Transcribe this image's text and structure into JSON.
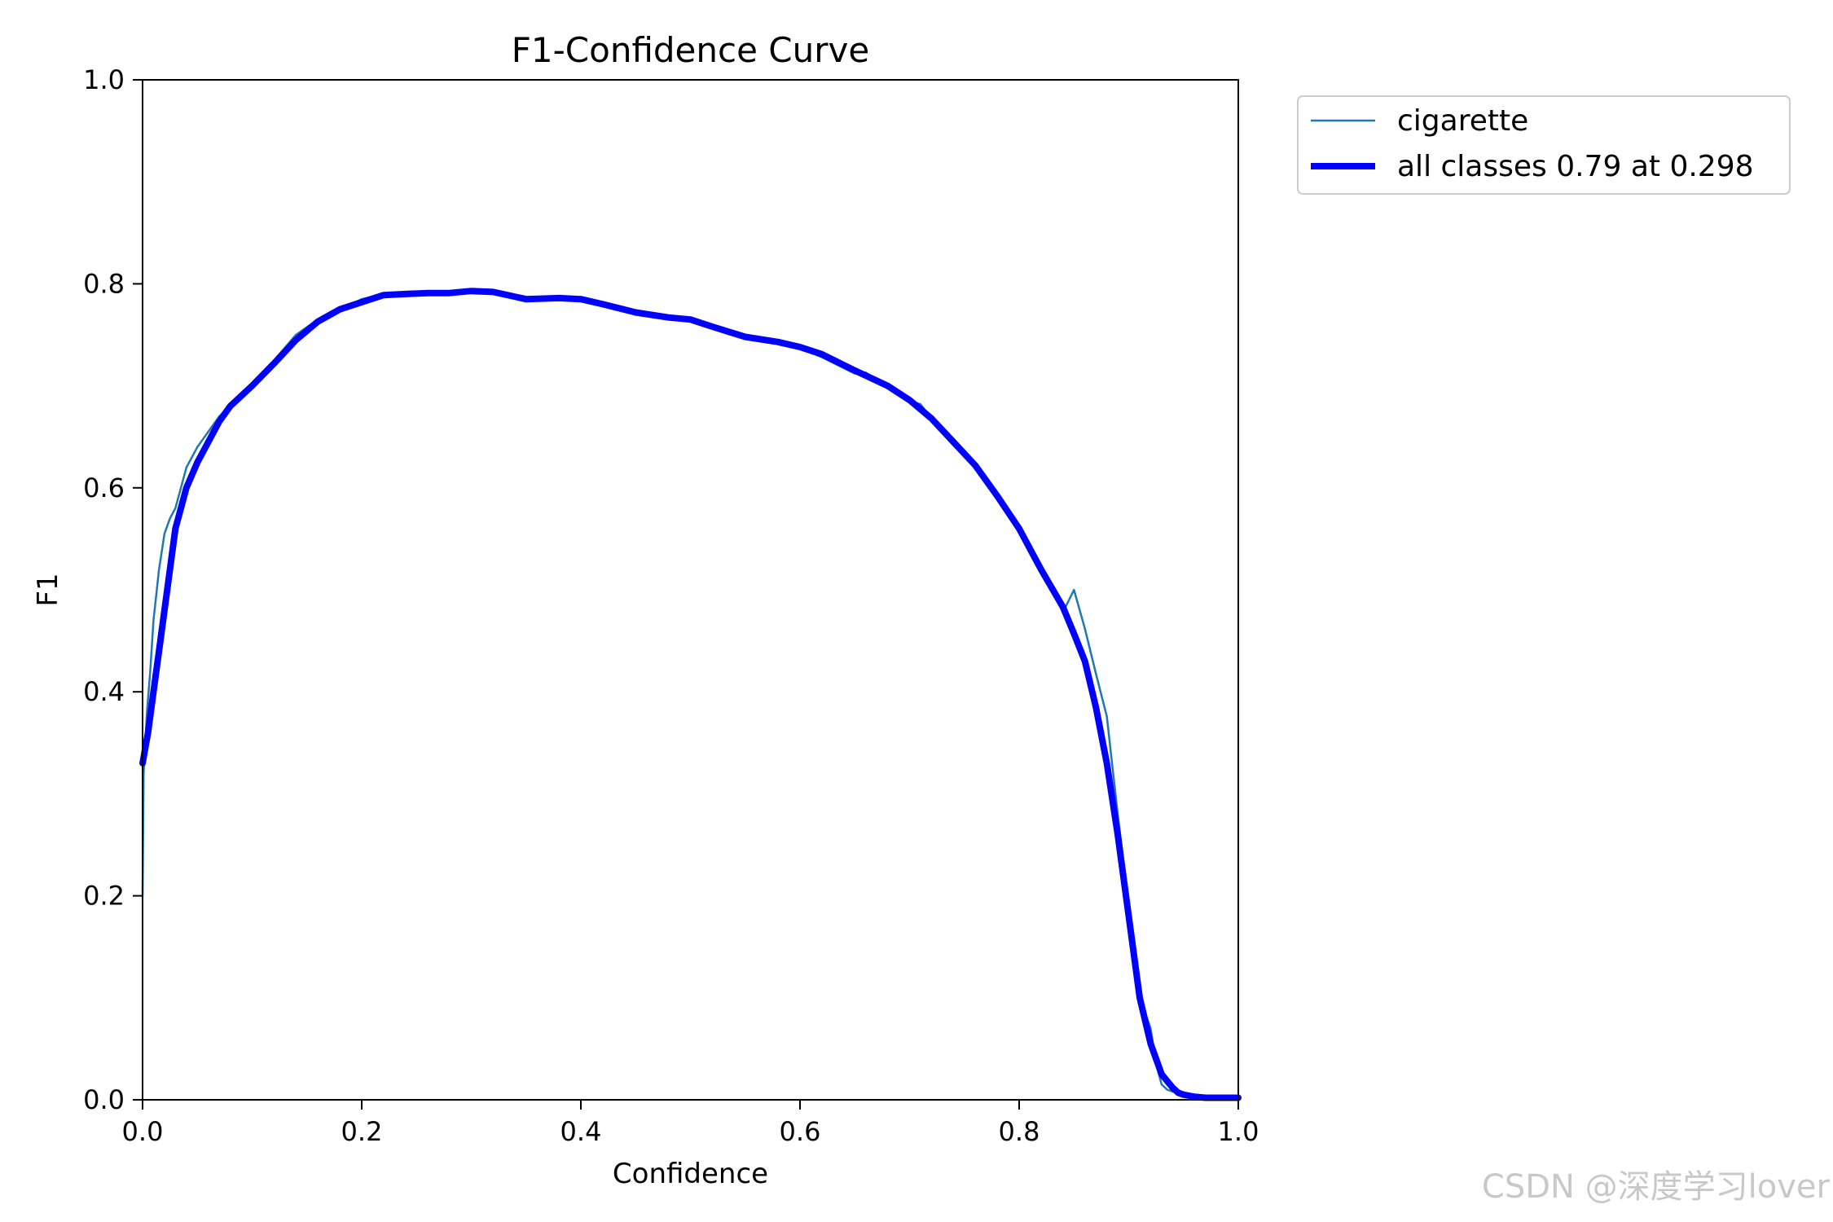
{
  "chart_data": {
    "type": "line",
    "title": "F1-Confidence Curve",
    "xlabel": "Confidence",
    "ylabel": "F1",
    "xlim": [
      0.0,
      1.0
    ],
    "ylim": [
      0.0,
      1.0
    ],
    "xticks": [
      "0.0",
      "0.2",
      "0.4",
      "0.6",
      "0.8",
      "1.0"
    ],
    "yticks": [
      "0.0",
      "0.2",
      "0.4",
      "0.6",
      "0.8",
      "1.0"
    ],
    "grid": false,
    "legend_position": "outside-top-right",
    "series": [
      {
        "name": "cigarette",
        "color": "#1f77b4",
        "style": "thin",
        "x": [
          0.0,
          0.001,
          0.004,
          0.007,
          0.01,
          0.015,
          0.02,
          0.025,
          0.03,
          0.035,
          0.04,
          0.05,
          0.06,
          0.07,
          0.08,
          0.1,
          0.12,
          0.14,
          0.16,
          0.18,
          0.2,
          0.22,
          0.24,
          0.26,
          0.28,
          0.3,
          0.32,
          0.35,
          0.38,
          0.4,
          0.42,
          0.45,
          0.47,
          0.5,
          0.52,
          0.55,
          0.58,
          0.6,
          0.62,
          0.65,
          0.66,
          0.68,
          0.7,
          0.71,
          0.72,
          0.74,
          0.76,
          0.78,
          0.8,
          0.82,
          0.84,
          0.85,
          0.86,
          0.87,
          0.88,
          0.89,
          0.9,
          0.91,
          0.92,
          0.925,
          0.93,
          0.935,
          0.94,
          0.95,
          0.955,
          0.96,
          0.97,
          1.0
        ],
        "y": [
          0.2,
          0.32,
          0.38,
          0.42,
          0.47,
          0.52,
          0.555,
          0.57,
          0.58,
          0.6,
          0.62,
          0.64,
          0.655,
          0.67,
          0.68,
          0.7,
          0.725,
          0.75,
          0.765,
          0.775,
          0.785,
          0.79,
          0.792,
          0.791,
          0.791,
          0.793,
          0.79,
          0.785,
          0.786,
          0.785,
          0.778,
          0.77,
          0.768,
          0.765,
          0.758,
          0.748,
          0.742,
          0.737,
          0.728,
          0.712,
          0.713,
          0.698,
          0.685,
          0.682,
          0.668,
          0.645,
          0.622,
          0.592,
          0.556,
          0.52,
          0.478,
          0.5,
          0.462,
          0.418,
          0.376,
          0.28,
          0.19,
          0.1,
          0.07,
          0.035,
          0.015,
          0.01,
          0.008,
          0.006,
          0.004,
          0.003,
          0.002,
          0.001
        ]
      },
      {
        "name": "all classes 0.79 at 0.298",
        "color": "#0000ff",
        "style": "thick",
        "x": [
          0.0,
          0.005,
          0.01,
          0.015,
          0.02,
          0.025,
          0.03,
          0.04,
          0.05,
          0.06,
          0.07,
          0.08,
          0.1,
          0.12,
          0.14,
          0.16,
          0.18,
          0.2,
          0.22,
          0.24,
          0.26,
          0.28,
          0.3,
          0.32,
          0.35,
          0.38,
          0.4,
          0.42,
          0.45,
          0.48,
          0.5,
          0.52,
          0.55,
          0.58,
          0.6,
          0.62,
          0.65,
          0.68,
          0.7,
          0.72,
          0.74,
          0.76,
          0.78,
          0.8,
          0.82,
          0.84,
          0.85,
          0.86,
          0.87,
          0.88,
          0.89,
          0.9,
          0.91,
          0.92,
          0.93,
          0.94,
          0.945,
          0.95,
          0.955,
          0.96,
          0.97,
          0.98,
          1.0
        ],
        "y": [
          0.33,
          0.36,
          0.4,
          0.44,
          0.48,
          0.52,
          0.56,
          0.6,
          0.625,
          0.645,
          0.665,
          0.68,
          0.7,
          0.722,
          0.745,
          0.763,
          0.775,
          0.782,
          0.789,
          0.79,
          0.791,
          0.791,
          0.793,
          0.792,
          0.785,
          0.786,
          0.785,
          0.78,
          0.772,
          0.767,
          0.765,
          0.758,
          0.748,
          0.743,
          0.738,
          0.731,
          0.715,
          0.7,
          0.686,
          0.668,
          0.645,
          0.622,
          0.592,
          0.56,
          0.52,
          0.483,
          0.457,
          0.43,
          0.385,
          0.33,
          0.26,
          0.18,
          0.1,
          0.055,
          0.025,
          0.012,
          0.007,
          0.005,
          0.004,
          0.003,
          0.002,
          0.002,
          0.002
        ]
      }
    ]
  },
  "watermark": "CSDN @深度学习lover"
}
